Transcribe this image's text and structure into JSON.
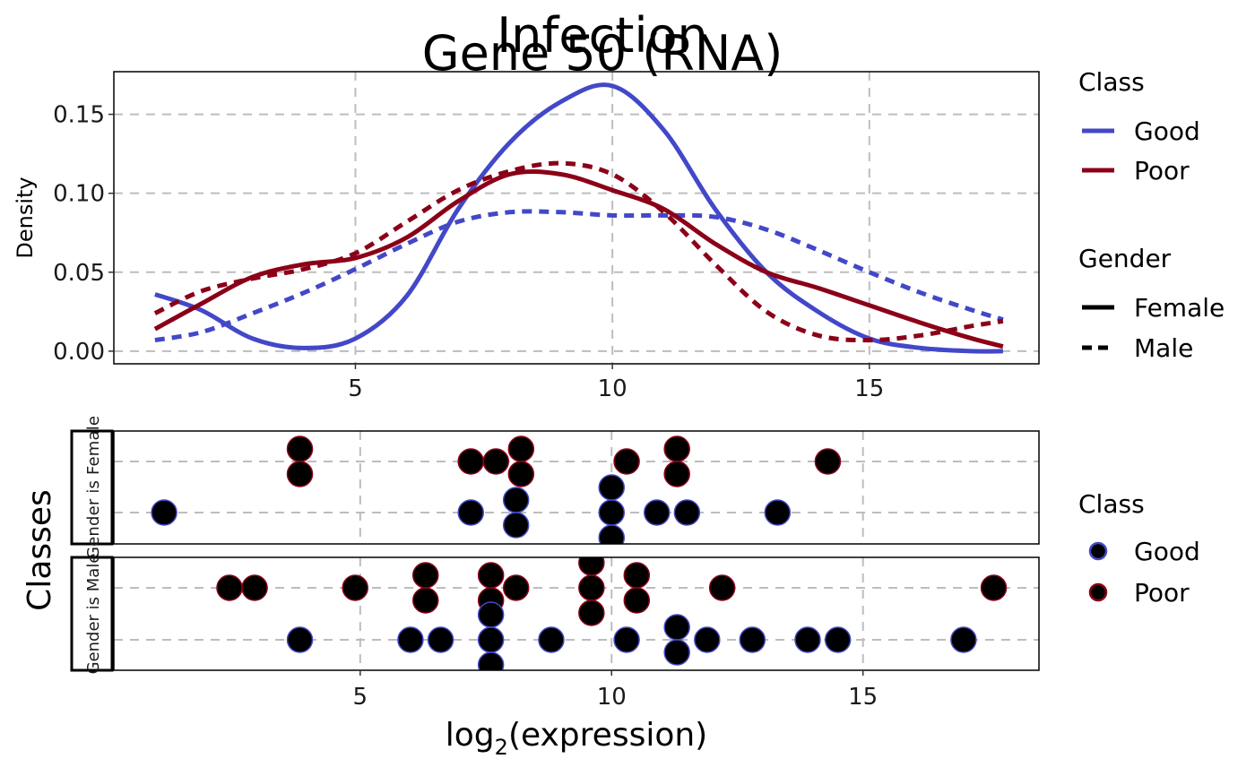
{
  "titles": {
    "line1": "Infection",
    "line2": "Gene 50 (RNA)"
  },
  "chart_data": [
    {
      "type": "line",
      "ylabel": "Density",
      "xlim": [
        0.3,
        18.3
      ],
      "ylim": [
        -0.008,
        0.177
      ],
      "xticks": [
        5,
        10,
        15
      ],
      "yticks": [
        0.0,
        0.05,
        0.1,
        0.15
      ],
      "ytick_labels": [
        "0.00",
        "0.05",
        "0.10",
        "0.15"
      ],
      "grid": true,
      "series": [
        {
          "name": "Good",
          "gender": "Female",
          "color": "#4248c8",
          "dash": "solid",
          "x": [
            1.1,
            2,
            3,
            4,
            5,
            6,
            7,
            8,
            9,
            10,
            11,
            12,
            13,
            14,
            15,
            16,
            17,
            17.6
          ],
          "y": [
            0.036,
            0.026,
            0.008,
            0.002,
            0.008,
            0.035,
            0.09,
            0.132,
            0.158,
            0.168,
            0.14,
            0.09,
            0.05,
            0.025,
            0.008,
            0.002,
            0.0,
            0.0
          ]
        },
        {
          "name": "Good",
          "gender": "Male",
          "color": "#4248c8",
          "dash": "dashed",
          "x": [
            1.1,
            2,
            3,
            4,
            5,
            6,
            7,
            8,
            9,
            10,
            11,
            12,
            13,
            14,
            15,
            16,
            17,
            17.6
          ],
          "y": [
            0.007,
            0.012,
            0.024,
            0.037,
            0.052,
            0.068,
            0.082,
            0.088,
            0.088,
            0.086,
            0.086,
            0.085,
            0.077,
            0.064,
            0.05,
            0.037,
            0.026,
            0.02
          ]
        },
        {
          "name": "Poor",
          "gender": "Female",
          "color": "#8b0018",
          "dash": "solid",
          "x": [
            1.1,
            2,
            3,
            4,
            5,
            6,
            7,
            8,
            9,
            10,
            11,
            12,
            13,
            14,
            15,
            16,
            17,
            17.6
          ],
          "y": [
            0.014,
            0.03,
            0.047,
            0.055,
            0.059,
            0.072,
            0.095,
            0.112,
            0.112,
            0.102,
            0.09,
            0.068,
            0.05,
            0.04,
            0.029,
            0.018,
            0.008,
            0.003
          ]
        },
        {
          "name": "Poor",
          "gender": "Male",
          "color": "#8b0018",
          "dash": "dashed",
          "x": [
            1.1,
            2,
            3,
            4,
            5,
            6,
            7,
            8,
            9,
            10,
            11,
            12,
            13,
            14,
            15,
            16,
            17,
            17.6
          ],
          "y": [
            0.024,
            0.038,
            0.046,
            0.052,
            0.062,
            0.082,
            0.102,
            0.114,
            0.119,
            0.112,
            0.088,
            0.055,
            0.025,
            0.01,
            0.007,
            0.01,
            0.016,
            0.019
          ]
        }
      ]
    },
    {
      "type": "scatter",
      "ylabel": "Classes",
      "xlabel_base": "log",
      "xlabel_sub": "2",
      "xlabel_rest": "(expression)",
      "xlim": [
        0.1,
        18.5
      ],
      "xticks": [
        5,
        10,
        15
      ],
      "grid": true,
      "panels": [
        {
          "strip": "Gender is Female",
          "good": [
            [
              1.1,
              0
            ],
            [
              7.2,
              0
            ],
            [
              8.1,
              0.25
            ],
            [
              8.1,
              -0.25
            ],
            [
              10.0,
              0.5
            ],
            [
              10.0,
              0
            ],
            [
              10.0,
              -0.5
            ],
            [
              10.9,
              0
            ],
            [
              11.5,
              0
            ],
            [
              13.3,
              0
            ]
          ],
          "poor": [
            [
              3.8,
              0.25
            ],
            [
              3.8,
              -0.25
            ],
            [
              7.2,
              0
            ],
            [
              7.7,
              0
            ],
            [
              8.2,
              0.25
            ],
            [
              8.2,
              -0.25
            ],
            [
              10.3,
              0
            ],
            [
              11.3,
              0.25
            ],
            [
              11.3,
              -0.25
            ],
            [
              14.3,
              0
            ]
          ]
        },
        {
          "strip": "Gender is Male",
          "good": [
            [
              3.8,
              0
            ],
            [
              6.0,
              0
            ],
            [
              6.6,
              0
            ],
            [
              7.6,
              0.5
            ],
            [
              7.6,
              0
            ],
            [
              7.6,
              -0.5
            ],
            [
              8.8,
              0
            ],
            [
              10.3,
              0
            ],
            [
              11.3,
              0.25
            ],
            [
              11.3,
              -0.25
            ],
            [
              11.9,
              0
            ],
            [
              12.8,
              0
            ],
            [
              13.9,
              0
            ],
            [
              14.5,
              0
            ],
            [
              17.0,
              0
            ]
          ],
          "poor": [
            [
              2.4,
              0
            ],
            [
              2.9,
              0
            ],
            [
              4.9,
              0
            ],
            [
              6.3,
              0.25
            ],
            [
              6.3,
              -0.25
            ],
            [
              7.6,
              0.25
            ],
            [
              7.6,
              -0.25
            ],
            [
              8.1,
              0
            ],
            [
              9.6,
              0.5
            ],
            [
              9.6,
              0
            ],
            [
              9.6,
              -0.5
            ],
            [
              10.5,
              0.25
            ],
            [
              10.5,
              -0.25
            ],
            [
              12.2,
              0
            ],
            [
              17.6,
              0
            ]
          ]
        }
      ]
    }
  ],
  "legend_top": {
    "class_title": "Class",
    "class_items": [
      {
        "label": "Good",
        "color": "#4248c8"
      },
      {
        "label": "Poor",
        "color": "#8b0018"
      }
    ],
    "gender_title": "Gender",
    "gender_items": [
      {
        "label": "Female",
        "style": "solid"
      },
      {
        "label": "Male",
        "style": "dashed"
      }
    ]
  },
  "legend_bottom": {
    "class_title": "Class",
    "class_items": [
      {
        "label": "Good",
        "color": "#4248c8"
      },
      {
        "label": "Poor",
        "color": "#8b0018"
      }
    ]
  }
}
